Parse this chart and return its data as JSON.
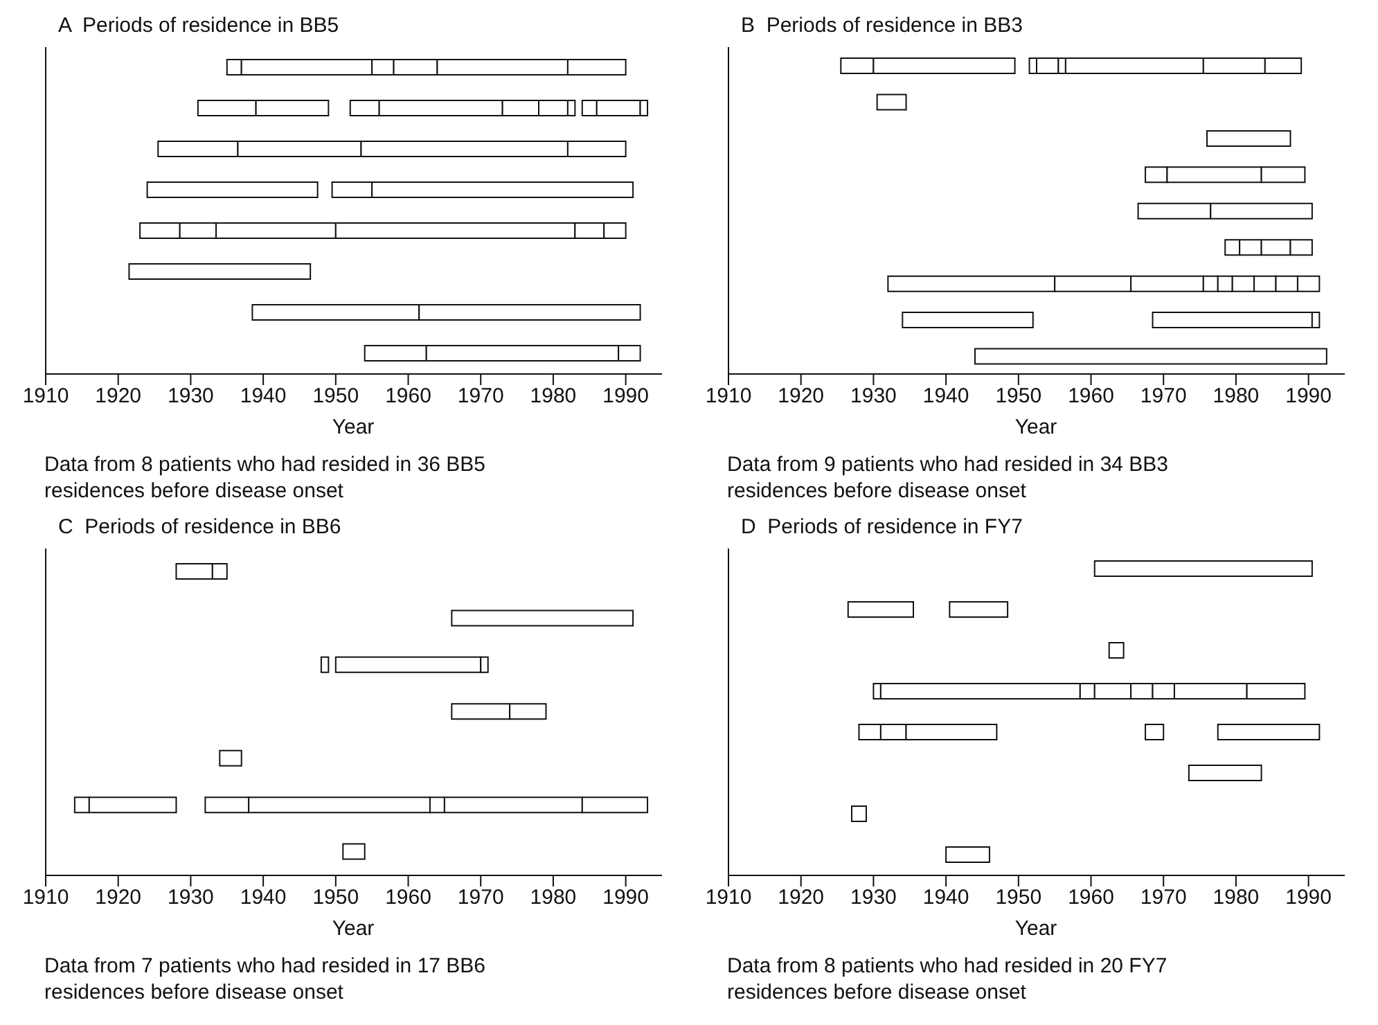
{
  "chart_data": [
    {
      "type": "bar",
      "orientation": "horizontal",
      "title": "A  Periods of residence in BB5",
      "xlabel": "Year",
      "annotations": [
        "Data from 8 patients who had resided in 36 BB5 residences before disease onset"
      ],
      "categories": [
        null,
        null,
        null,
        null,
        null,
        null,
        null,
        null
      ],
      "xlim": [
        1910,
        1995
      ],
      "xticks": [
        1910,
        1920,
        1930,
        1940,
        1950,
        1960,
        1970,
        1980,
        1990
      ],
      "tick_labels": "x",
      "series": [
        {
          "color": "#ffffff",
          "base": [
            1935,
            1931,
            1925.5,
            1924,
            1923,
            1921.5,
            1938.5,
            1954
          ],
          "values": [
            2,
            8,
            11,
            23.5,
            5.5,
            25,
            23,
            8.5
          ]
        },
        {
          "color": "#ffffff",
          "base": [
            1937,
            1939,
            1936.5,
            1949.5,
            1928.5,
            null,
            1961.5,
            1962.5
          ],
          "values": [
            18,
            10,
            17,
            5.5,
            5,
            null,
            30.5,
            26.5
          ]
        },
        {
          "color": "#ffffff",
          "base": [
            1955,
            1952,
            1953.5,
            1955,
            1933.5,
            null,
            null,
            1989
          ],
          "values": [
            3,
            4,
            28.5,
            36,
            16.5,
            null,
            null,
            3
          ]
        },
        {
          "color": "#ffffff",
          "base": [
            1958,
            1956,
            1982,
            null,
            1950,
            null,
            null,
            null
          ],
          "values": [
            6,
            17,
            8,
            null,
            33,
            null,
            null,
            null
          ]
        },
        {
          "color": "#ffffff",
          "base": [
            1964,
            1973,
            null,
            null,
            1983,
            null,
            null,
            null
          ],
          "values": [
            18,
            5,
            null,
            null,
            4,
            null,
            null,
            null
          ]
        },
        {
          "color": "#ffffff",
          "base": [
            1982,
            1978,
            null,
            null,
            1987,
            null,
            null,
            null
          ],
          "values": [
            8,
            4,
            null,
            null,
            3,
            null,
            null,
            null
          ]
        },
        {
          "color": "#ffffff",
          "base": [
            null,
            1982,
            null,
            null,
            null,
            null,
            null,
            null
          ],
          "values": [
            null,
            1,
            null,
            null,
            null,
            null,
            null,
            null
          ]
        },
        {
          "color": "#ffffff",
          "base": [
            null,
            1984,
            null,
            null,
            null,
            null,
            null,
            null
          ],
          "values": [
            null,
            2,
            null,
            null,
            null,
            null,
            null,
            null
          ]
        },
        {
          "color": "#ffffff",
          "base": [
            null,
            1986,
            null,
            null,
            null,
            null,
            null,
            null
          ],
          "values": [
            null,
            6,
            null,
            null,
            null,
            null,
            null,
            null
          ]
        },
        {
          "color": "#ffffff",
          "base": [
            null,
            1992,
            null,
            null,
            null,
            null,
            null,
            null
          ],
          "values": [
            null,
            1,
            null,
            null,
            null,
            null,
            null,
            null
          ]
        }
      ]
    },
    {
      "type": "bar",
      "orientation": "horizontal",
      "title": "B  Periods of residence in BB3",
      "xlabel": "Year",
      "annotations": [
        "Data from 9 patients who had resided in 34 BB3 residences before disease onset"
      ],
      "categories": [
        null,
        null,
        null,
        null,
        null,
        null,
        null,
        null,
        null
      ],
      "xlim": [
        1910,
        1995
      ],
      "xticks": [
        1910,
        1920,
        1930,
        1940,
        1950,
        1960,
        1970,
        1980,
        1990
      ],
      "tick_labels": "x",
      "series": [
        {
          "color": "#ffffff",
          "base": [
            1925.5,
            1930.5,
            1976,
            1967.5,
            1966.5,
            1978.5,
            1932,
            1934,
            1944
          ],
          "values": [
            4.5,
            4,
            11.5,
            3,
            10,
            2,
            23,
            18,
            48.5
          ]
        },
        {
          "color": "#ffffff",
          "base": [
            1930,
            null,
            null,
            1970.5,
            1976.5,
            1980.5,
            1955,
            1968.5,
            null
          ],
          "values": [
            19.5,
            null,
            null,
            13,
            14,
            3,
            10.5,
            22,
            null
          ]
        },
        {
          "color": "#ffffff",
          "base": [
            1951.5,
            null,
            null,
            1983.5,
            null,
            1983.5,
            1965.5,
            1990.5,
            null
          ],
          "values": [
            1,
            null,
            null,
            6,
            null,
            4,
            10,
            1,
            null
          ]
        },
        {
          "color": "#ffffff",
          "base": [
            1952.5,
            null,
            null,
            null,
            null,
            1987.5,
            1975.5,
            null,
            null
          ],
          "values": [
            3,
            null,
            null,
            null,
            null,
            3,
            2,
            null,
            null
          ]
        },
        {
          "color": "#ffffff",
          "base": [
            1955.5,
            null,
            null,
            null,
            null,
            null,
            1977.5,
            null,
            null
          ],
          "values": [
            1,
            null,
            null,
            null,
            null,
            null,
            2,
            null,
            null
          ]
        },
        {
          "color": "#ffffff",
          "base": [
            1956.5,
            null,
            null,
            null,
            null,
            null,
            1979.5,
            null,
            null
          ],
          "values": [
            19,
            null,
            null,
            null,
            null,
            null,
            3,
            null,
            null
          ]
        },
        {
          "color": "#ffffff",
          "base": [
            1975.5,
            null,
            null,
            null,
            null,
            null,
            1982.5,
            null,
            null
          ],
          "values": [
            8.5,
            null,
            null,
            null,
            null,
            null,
            3,
            null,
            null
          ]
        },
        {
          "color": "#ffffff",
          "base": [
            1984,
            null,
            null,
            null,
            null,
            null,
            1985.5,
            null,
            null
          ],
          "values": [
            5,
            null,
            null,
            null,
            null,
            null,
            3,
            null,
            null
          ]
        },
        {
          "color": "#ffffff",
          "base": [
            null,
            null,
            null,
            null,
            null,
            null,
            1988.5,
            null,
            null
          ],
          "values": [
            null,
            null,
            null,
            null,
            null,
            null,
            3,
            null,
            null
          ]
        }
      ]
    },
    {
      "type": "bar",
      "orientation": "horizontal",
      "title": "C  Periods of residence in BB6",
      "xlabel": "Year",
      "annotations": [
        "Data from 7 patients who had resided in 17 BB6 residences before disease onset"
      ],
      "categories": [
        null,
        null,
        null,
        null,
        null,
        null,
        null
      ],
      "xlim": [
        1910,
        1995
      ],
      "xticks": [
        1910,
        1920,
        1930,
        1940,
        1950,
        1960,
        1970,
        1980,
        1990
      ],
      "tick_labels": "x",
      "series": [
        {
          "color": "#ffffff",
          "base": [
            1928,
            1966,
            1948,
            1966,
            1934,
            1914,
            1951
          ],
          "values": [
            5,
            25,
            1,
            8,
            3,
            2,
            3
          ]
        },
        {
          "color": "#ffffff",
          "base": [
            1933,
            null,
            1950,
            1974,
            null,
            1916,
            null
          ],
          "values": [
            2,
            null,
            20,
            5,
            null,
            12,
            null
          ]
        },
        {
          "color": "#ffffff",
          "base": [
            null,
            null,
            1970,
            null,
            null,
            1932,
            null
          ],
          "values": [
            null,
            null,
            1,
            null,
            null,
            6,
            null
          ]
        },
        {
          "color": "#ffffff",
          "base": [
            null,
            null,
            null,
            null,
            null,
            1938,
            null
          ],
          "values": [
            null,
            null,
            null,
            null,
            null,
            25,
            null
          ]
        },
        {
          "color": "#ffffff",
          "base": [
            null,
            null,
            null,
            null,
            null,
            1963,
            null
          ],
          "values": [
            null,
            null,
            null,
            null,
            null,
            2,
            null
          ]
        },
        {
          "color": "#ffffff",
          "base": [
            null,
            null,
            null,
            null,
            null,
            1965,
            null
          ],
          "values": [
            null,
            null,
            null,
            null,
            null,
            19,
            null
          ]
        },
        {
          "color": "#ffffff",
          "base": [
            null,
            null,
            null,
            null,
            null,
            1984,
            null
          ],
          "values": [
            null,
            null,
            null,
            null,
            null,
            9,
            null
          ]
        }
      ]
    },
    {
      "type": "bar",
      "orientation": "horizontal",
      "title": "D  Periods of residence in FY7",
      "xlabel": "Year",
      "annotations": [
        "Data from 8 patients who had resided in 20 FY7 residences before disease onset"
      ],
      "categories": [
        null,
        null,
        null,
        null,
        null,
        null,
        null,
        null
      ],
      "xlim": [
        1910,
        1995
      ],
      "xticks": [
        1910,
        1920,
        1930,
        1940,
        1950,
        1960,
        1970,
        1980,
        1990
      ],
      "tick_labels": "x",
      "series": [
        {
          "color": "#ffffff",
          "base": [
            1960.5,
            1926.5,
            1962.5,
            1930,
            1928,
            1973.5,
            1927,
            1940
          ],
          "values": [
            30,
            9,
            2,
            1,
            3,
            10,
            2,
            6
          ]
        },
        {
          "color": "#ffffff",
          "base": [
            null,
            1940.5,
            null,
            1931,
            1931,
            null,
            null,
            null
          ],
          "values": [
            null,
            8,
            null,
            27.5,
            3.5,
            null,
            null,
            null
          ]
        },
        {
          "color": "#ffffff",
          "base": [
            null,
            null,
            null,
            1958.5,
            1934.5,
            null,
            null,
            null
          ],
          "values": [
            null,
            null,
            null,
            2,
            12.5,
            null,
            null,
            null
          ]
        },
        {
          "color": "#ffffff",
          "base": [
            null,
            null,
            null,
            1960.5,
            1967.5,
            null,
            null,
            null
          ],
          "values": [
            null,
            null,
            null,
            5,
            2.5,
            null,
            null,
            null
          ]
        },
        {
          "color": "#ffffff",
          "base": [
            null,
            null,
            null,
            1965.5,
            1977.5,
            null,
            null,
            null
          ],
          "values": [
            null,
            null,
            null,
            3,
            14,
            null,
            null,
            null
          ]
        },
        {
          "color": "#ffffff",
          "base": [
            null,
            null,
            null,
            1968.5,
            null,
            null,
            null,
            null
          ],
          "values": [
            null,
            null,
            null,
            3,
            null,
            null,
            null,
            null
          ]
        },
        {
          "color": "#ffffff",
          "base": [
            null,
            null,
            null,
            1971.5,
            null,
            null,
            null,
            null
          ],
          "values": [
            null,
            null,
            null,
            10,
            null,
            null,
            null,
            null
          ]
        },
        {
          "color": "#ffffff",
          "base": [
            null,
            null,
            null,
            1981.5,
            null,
            null,
            null,
            null
          ],
          "values": [
            null,
            null,
            null,
            8,
            null,
            null,
            null,
            null
          ]
        }
      ]
    }
  ]
}
